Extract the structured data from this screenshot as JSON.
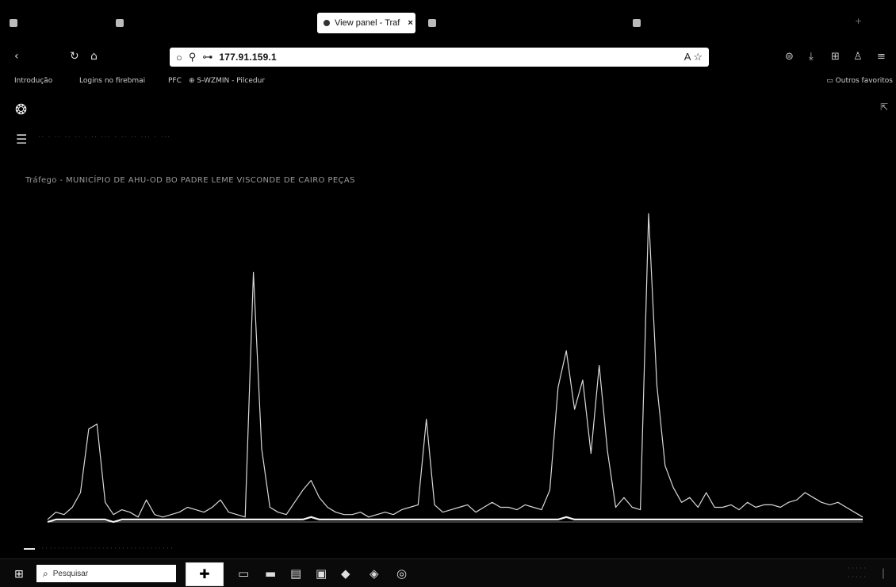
{
  "browser": {
    "tabs": [
      {
        "label": "",
        "active": false
      },
      {
        "label": "",
        "active": false
      },
      {
        "label": "View panel - Traf",
        "active": true
      },
      {
        "label": "",
        "active": false
      },
      {
        "label": "",
        "active": false
      }
    ],
    "tab_close": "×",
    "address": {
      "url": "177.91.159.1"
    },
    "bookmarks": [
      {
        "label": "Introdução"
      },
      {
        "label": "Logins no firebmai"
      },
      {
        "label": "PFC"
      },
      {
        "label": "S-WZMIN - Pilcedur"
      }
    ],
    "other_bookmarks": "Outros favoritos"
  },
  "dashboard": {
    "panel_title": "Tráfego - MUNICÍPIO DE AHU-OD BO PADRE LEME VISCONDE DE CAIRO PEÇAS"
  },
  "chart_data": {
    "type": "line",
    "title": "Tráfego - MUNICÍPIO DE AHU-OD BO PADRE LEME VISCONDE DE CAIRO PEÇAS",
    "xlabel": "",
    "ylabel": "",
    "grid": false,
    "legend_position": "bottom",
    "x": [
      0,
      1,
      2,
      3,
      4,
      5,
      6,
      7,
      8,
      9,
      10,
      11,
      12,
      13,
      14,
      15,
      16,
      17,
      18,
      19,
      20,
      21,
      22,
      23,
      24,
      25,
      26,
      27,
      28,
      29,
      30,
      31,
      32,
      33,
      34,
      35,
      36,
      37,
      38,
      39,
      40,
      41,
      42,
      43,
      44,
      45,
      46,
      47,
      48,
      49,
      50,
      51,
      52,
      53,
      54,
      55,
      56,
      57,
      58,
      59,
      60,
      61,
      62,
      63,
      64,
      65,
      66,
      67,
      68,
      69,
      70,
      71,
      72,
      73,
      74,
      75,
      76,
      77,
      78,
      79,
      80,
      81,
      82,
      83,
      84,
      85,
      86,
      87,
      88,
      89,
      90,
      91,
      92,
      93,
      94,
      95,
      96,
      97,
      98,
      99
    ],
    "series": [
      {
        "values": [
          1,
          4,
          3,
          6,
          12,
          38,
          40,
          8,
          3,
          5,
          4,
          2,
          9,
          3,
          2,
          3,
          4,
          6,
          5,
          4,
          6,
          9,
          4,
          3,
          2,
          102,
          30,
          6,
          4,
          3,
          8,
          13,
          17,
          10,
          6,
          4,
          3,
          3,
          4,
          2,
          3,
          4,
          3,
          5,
          6,
          7,
          42,
          7,
          4,
          5,
          6,
          7,
          4,
          6,
          8,
          6,
          6,
          5,
          7,
          6,
          5,
          13,
          55,
          70,
          46,
          58,
          28,
          64,
          29,
          6,
          10,
          6,
          5,
          126,
          56,
          23,
          14,
          8,
          10,
          6,
          12,
          6,
          6,
          7,
          5,
          8,
          6,
          7,
          7,
          6,
          8,
          9,
          12,
          10,
          8,
          7,
          8,
          6,
          4,
          2
        ]
      },
      {
        "values": [
          0,
          1,
          1,
          1,
          1,
          1,
          1,
          1,
          0,
          1,
          1,
          1,
          1,
          1,
          1,
          1,
          1,
          1,
          1,
          1,
          1,
          1,
          1,
          1,
          1,
          1,
          1,
          1,
          1,
          1,
          1,
          1,
          2,
          1,
          1,
          1,
          1,
          1,
          1,
          1,
          1,
          1,
          1,
          1,
          1,
          1,
          1,
          1,
          1,
          1,
          1,
          1,
          1,
          1,
          1,
          1,
          1,
          1,
          1,
          1,
          1,
          1,
          1,
          2,
          1,
          1,
          1,
          1,
          1,
          1,
          1,
          1,
          1,
          1,
          1,
          1,
          1,
          1,
          1,
          1,
          1,
          1,
          1,
          1,
          1,
          1,
          1,
          1,
          1,
          1,
          1,
          1,
          1,
          1,
          1,
          1,
          1,
          1,
          1,
          1
        ]
      }
    ]
  },
  "taskbar": {
    "search_placeholder": "Pesquisar"
  }
}
